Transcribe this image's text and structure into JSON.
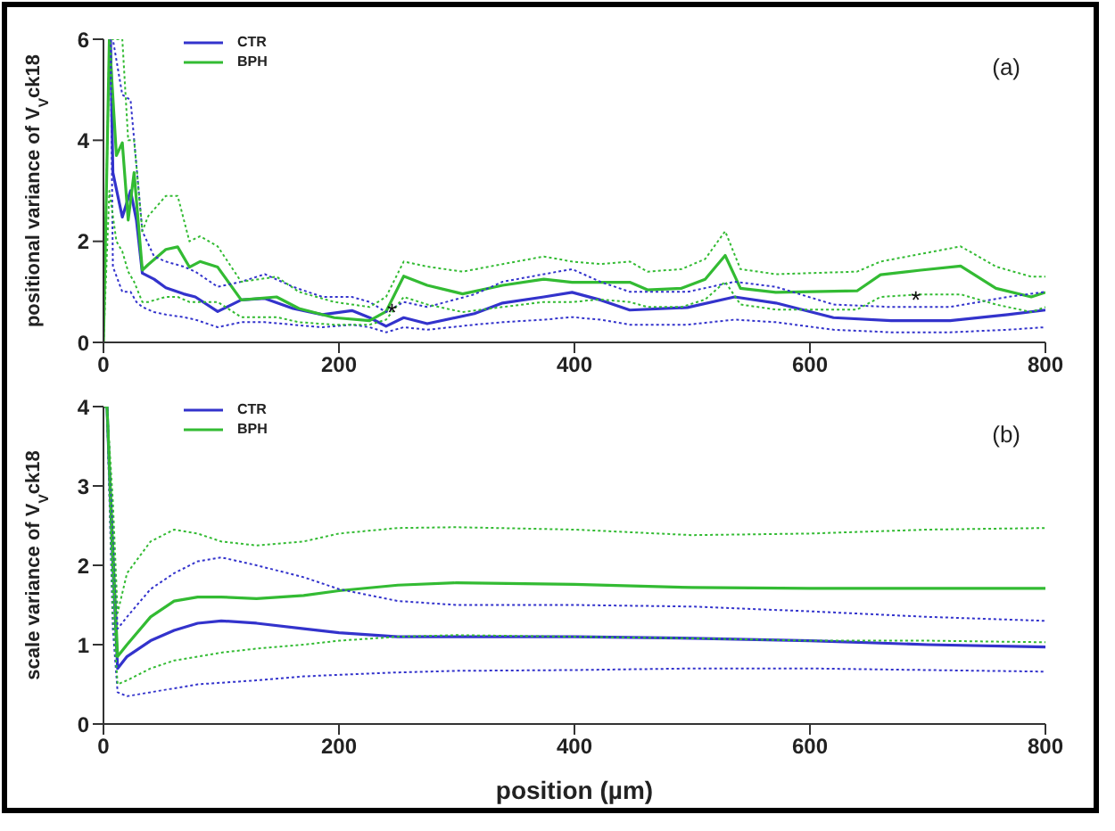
{
  "chart_data": [
    {
      "type": "line",
      "ylabel": "positional variance of V$_{V}$ck18",
      "xlim": [
        0,
        800
      ],
      "xticks": [
        0,
        200,
        400,
        600,
        800
      ],
      "ylim": [
        0,
        6
      ],
      "yticks": [
        0,
        2,
        4,
        6
      ],
      "legend": "top left",
      "marker": "none",
      "line_style": "solid",
      "annotations": [
        "(a)",
        {
          "text": "*",
          "x": 245,
          "y": 0.6
        },
        {
          "text": "*",
          "x": 690,
          "y": 0.85
        }
      ],
      "series": [
        {
          "name": "CTR",
          "color": "#3333cc",
          "x": [
            6,
            8,
            16,
            23,
            28,
            33,
            43,
            53,
            68,
            78,
            97,
            117,
            137,
            161,
            186,
            211,
            226,
            240,
            255,
            275,
            315,
            339,
            374,
            398,
            422,
            447,
            496,
            536,
            571,
            620,
            669,
            719,
            768,
            800
          ],
          "values": [
            6,
            3.36,
            2.48,
            3.0,
            2.42,
            1.37,
            1.25,
            1.08,
            0.96,
            0.9,
            0.61,
            0.84,
            0.87,
            0.67,
            0.55,
            0.63,
            0.49,
            0.32,
            0.49,
            0.37,
            0.57,
            0.78,
            0.9,
            0.99,
            0.84,
            0.64,
            0.69,
            0.9,
            0.78,
            0.49,
            0.43,
            0.43,
            0.55,
            0.64
          ]
        },
        {
          "name": "BPH",
          "color": "#33bb33",
          "x": [
            0,
            5,
            11,
            16,
            21,
            26,
            33,
            38,
            53,
            63,
            73,
            82,
            97,
            117,
            147,
            166,
            196,
            226,
            240,
            255,
            275,
            305,
            339,
            374,
            398,
            422,
            447,
            462,
            491,
            511,
            528,
            541,
            571,
            640,
            660,
            694,
            728,
            758,
            788,
            800
          ],
          "values": [
            0,
            6,
            3.7,
            3.95,
            2.42,
            3.36,
            1.43,
            1.54,
            1.84,
            1.89,
            1.49,
            1.6,
            1.49,
            0.84,
            0.9,
            0.67,
            0.49,
            0.43,
            0.61,
            1.31,
            1.13,
            0.96,
            1.13,
            1.25,
            1.19,
            1.19,
            1.19,
            1.04,
            1.07,
            1.25,
            1.72,
            1.07,
            0.99,
            1.02,
            1.34,
            1.43,
            1.51,
            1.07,
            0.9,
            0.99
          ]
        },
        {
          "type": "line",
          "line_style": "dotted",
          "color": "#3333cc",
          "x": [
            6,
            8,
            16,
            23,
            28,
            33,
            43,
            53,
            68,
            78,
            97,
            117,
            137,
            161,
            186,
            211,
            226,
            240,
            255,
            275,
            315,
            339,
            374,
            398,
            422,
            447,
            496,
            536,
            571,
            620,
            669,
            719,
            768,
            800
          ],
          "values": [
            6,
            6,
            4.9,
            4.8,
            3.5,
            2.2,
            1.7,
            1.6,
            1.5,
            1.4,
            1.1,
            1.2,
            1.35,
            1.1,
            0.9,
            0.9,
            0.8,
            0.6,
            0.8,
            0.7,
            0.95,
            1.2,
            1.35,
            1.45,
            1.2,
            1.0,
            1.0,
            1.2,
            1.1,
            0.75,
            0.7,
            0.7,
            0.9,
            1.0
          ]
        },
        {
          "type": "line",
          "line_style": "dotted",
          "color": "#3333cc",
          "x": [
            6,
            8,
            16,
            23,
            28,
            33,
            43,
            53,
            68,
            78,
            97,
            117,
            137,
            161,
            186,
            211,
            226,
            240,
            255,
            275,
            315,
            339,
            374,
            398,
            422,
            447,
            496,
            536,
            571,
            620,
            669,
            719,
            768,
            800
          ],
          "values": [
            6,
            1.5,
            1.0,
            1.0,
            0.8,
            0.7,
            0.6,
            0.55,
            0.5,
            0.45,
            0.3,
            0.4,
            0.4,
            0.35,
            0.3,
            0.35,
            0.3,
            0.2,
            0.3,
            0.25,
            0.35,
            0.4,
            0.45,
            0.5,
            0.45,
            0.35,
            0.35,
            0.45,
            0.4,
            0.25,
            0.2,
            0.2,
            0.25,
            0.3
          ]
        },
        {
          "type": "line",
          "line_style": "dotted",
          "color": "#33bb33",
          "x": [
            0,
            5,
            11,
            16,
            21,
            26,
            33,
            38,
            53,
            63,
            73,
            82,
            97,
            117,
            147,
            166,
            196,
            226,
            240,
            255,
            275,
            305,
            339,
            374,
            398,
            422,
            447,
            462,
            491,
            511,
            528,
            541,
            571,
            640,
            660,
            694,
            728,
            758,
            788,
            800
          ],
          "values": [
            0,
            6,
            6,
            6,
            4.0,
            4.0,
            2.2,
            2.5,
            2.9,
            2.9,
            2.0,
            2.1,
            1.9,
            1.2,
            1.3,
            1.0,
            0.8,
            0.7,
            0.9,
            1.6,
            1.5,
            1.4,
            1.55,
            1.7,
            1.6,
            1.55,
            1.6,
            1.4,
            1.45,
            1.65,
            2.2,
            1.45,
            1.35,
            1.4,
            1.6,
            1.75,
            1.9,
            1.5,
            1.3,
            1.3
          ]
        },
        {
          "type": "line",
          "line_style": "dotted",
          "color": "#33bb33",
          "x": [
            0,
            5,
            11,
            16,
            21,
            26,
            33,
            38,
            53,
            63,
            73,
            82,
            97,
            117,
            147,
            166,
            196,
            226,
            240,
            255,
            275,
            305,
            339,
            374,
            398,
            422,
            447,
            462,
            491,
            511,
            528,
            541,
            571,
            640,
            660,
            694,
            728,
            758,
            788,
            800
          ],
          "values": [
            0,
            3,
            2.0,
            1.8,
            1.4,
            1.2,
            0.8,
            0.8,
            0.9,
            0.9,
            0.8,
            0.8,
            0.8,
            0.5,
            0.5,
            0.4,
            0.35,
            0.35,
            0.45,
            0.9,
            0.75,
            0.6,
            0.7,
            0.8,
            0.8,
            0.85,
            0.8,
            0.7,
            0.7,
            0.85,
            1.2,
            0.75,
            0.65,
            0.65,
            0.9,
            0.95,
            0.95,
            0.75,
            0.6,
            0.7
          ]
        }
      ]
    },
    {
      "type": "line",
      "xlabel": "position (µm)",
      "ylabel": "scale variance of V$_{V}$ck18",
      "xlim": [
        0,
        800
      ],
      "xticks": [
        0,
        200,
        400,
        600,
        800
      ],
      "ylim": [
        0,
        4
      ],
      "yticks": [
        0,
        1,
        2,
        3,
        4
      ],
      "legend": "top left",
      "marker": "none",
      "line_style": "solid",
      "annotations": [
        "(b)"
      ],
      "series": [
        {
          "name": "CTR",
          "color": "#3333cc",
          "x": [
            0,
            3,
            8,
            12,
            20,
            40,
            60,
            80,
            100,
            130,
            170,
            200,
            250,
            300,
            400,
            500,
            600,
            700,
            800
          ],
          "values": [
            4,
            4,
            2.0,
            0.7,
            0.85,
            1.05,
            1.18,
            1.27,
            1.3,
            1.27,
            1.2,
            1.15,
            1.1,
            1.1,
            1.1,
            1.08,
            1.05,
            1.0,
            0.97
          ]
        },
        {
          "name": "BPH",
          "color": "#33bb33",
          "x": [
            0,
            3,
            8,
            12,
            20,
            40,
            60,
            80,
            100,
            130,
            170,
            200,
            250,
            300,
            400,
            500,
            600,
            700,
            800
          ],
          "values": [
            4,
            4,
            2.2,
            0.85,
            1.0,
            1.35,
            1.55,
            1.6,
            1.6,
            1.58,
            1.62,
            1.68,
            1.75,
            1.78,
            1.76,
            1.72,
            1.71,
            1.71,
            1.71
          ]
        },
        {
          "type": "line",
          "line_style": "dotted",
          "color": "#3333cc",
          "x": [
            0,
            3,
            8,
            12,
            20,
            40,
            60,
            80,
            100,
            130,
            170,
            200,
            250,
            300,
            400,
            500,
            600,
            700,
            800
          ],
          "values": [
            4,
            4,
            2.5,
            1.2,
            1.35,
            1.7,
            1.9,
            2.05,
            2.1,
            2.0,
            1.85,
            1.7,
            1.55,
            1.5,
            1.5,
            1.48,
            1.42,
            1.35,
            1.3
          ]
        },
        {
          "type": "line",
          "line_style": "dotted",
          "color": "#3333cc",
          "x": [
            0,
            3,
            8,
            12,
            20,
            40,
            60,
            80,
            100,
            130,
            170,
            200,
            250,
            300,
            400,
            500,
            600,
            700,
            800
          ],
          "values": [
            4,
            4,
            1.2,
            0.4,
            0.35,
            0.4,
            0.45,
            0.5,
            0.52,
            0.55,
            0.6,
            0.62,
            0.65,
            0.67,
            0.68,
            0.7,
            0.7,
            0.68,
            0.66
          ]
        },
        {
          "type": "line",
          "line_style": "dotted",
          "color": "#33bb33",
          "x": [
            0,
            3,
            8,
            12,
            20,
            40,
            60,
            80,
            100,
            130,
            170,
            200,
            250,
            300,
            400,
            500,
            600,
            700,
            800
          ],
          "values": [
            4,
            4,
            2.8,
            1.4,
            1.9,
            2.3,
            2.45,
            2.4,
            2.3,
            2.25,
            2.3,
            2.4,
            2.47,
            2.48,
            2.45,
            2.38,
            2.4,
            2.45,
            2.47
          ]
        },
        {
          "type": "line",
          "line_style": "dotted",
          "color": "#33bb33",
          "x": [
            0,
            3,
            8,
            12,
            20,
            40,
            60,
            80,
            100,
            130,
            170,
            200,
            250,
            300,
            400,
            500,
            600,
            700,
            800
          ],
          "values": [
            4,
            4,
            1.4,
            0.5,
            0.55,
            0.7,
            0.8,
            0.85,
            0.9,
            0.95,
            1.0,
            1.05,
            1.1,
            1.12,
            1.1,
            1.08,
            1.05,
            1.05,
            1.03
          ]
        }
      ]
    }
  ]
}
